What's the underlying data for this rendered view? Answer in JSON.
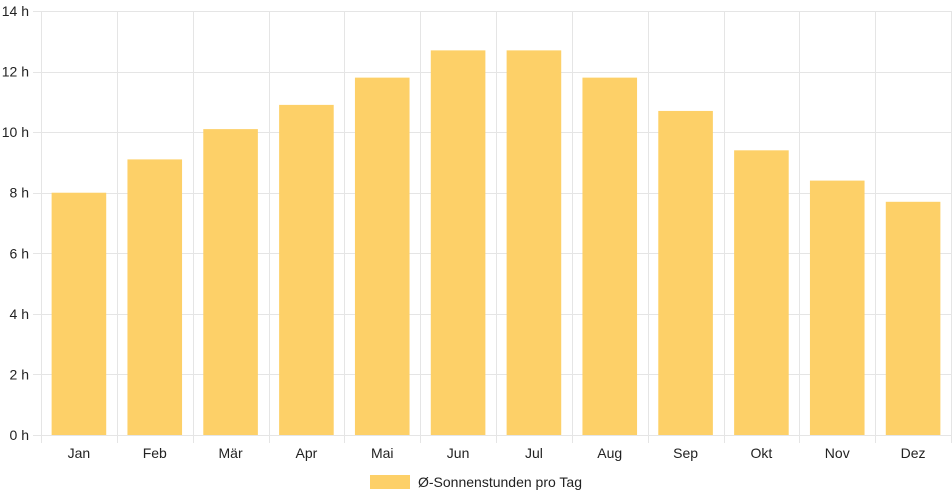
{
  "chart_data": {
    "type": "bar",
    "categories": [
      "Jan",
      "Feb",
      "Mär",
      "Apr",
      "Mai",
      "Jun",
      "Jul",
      "Aug",
      "Sep",
      "Okt",
      "Nov",
      "Dez"
    ],
    "series": [
      {
        "name": "Ø-Sonnenstunden pro Tag",
        "values": [
          8.0,
          9.1,
          10.1,
          10.9,
          11.8,
          12.7,
          12.7,
          11.8,
          10.7,
          9.4,
          8.4,
          7.7
        ]
      }
    ],
    "ylim": [
      0,
      14
    ],
    "yticks": [
      0,
      2,
      4,
      6,
      8,
      10,
      12,
      14
    ],
    "ytick_unit": "h",
    "grid": true,
    "legend_position": "bottom",
    "bar_color": "#fdd068",
    "grid_color": "#e5e5e5"
  },
  "legend": {
    "label": "Ø-Sonnenstunden pro Tag"
  }
}
